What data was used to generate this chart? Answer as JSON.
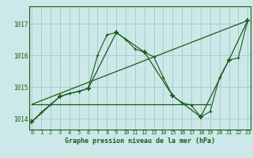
{
  "title": "Graphe pression niveau de la mer (hPa)",
  "bg_color": "#cce8e8",
  "grid_color": "#aacccc",
  "line_color": "#1a5c1a",
  "x_ticks": [
    0,
    1,
    2,
    3,
    4,
    5,
    6,
    7,
    8,
    9,
    10,
    11,
    12,
    13,
    14,
    15,
    16,
    17,
    18,
    19,
    20,
    21,
    22,
    23
  ],
  "y_ticks": [
    1014,
    1015,
    1016,
    1017
  ],
  "ylim": [
    1013.65,
    1017.55
  ],
  "xlim": [
    -0.3,
    23.3
  ],
  "series_hourly": {
    "x": [
      0,
      1,
      2,
      3,
      4,
      5,
      6,
      7,
      8,
      9,
      10,
      11,
      12,
      13,
      14,
      15,
      16,
      17,
      18,
      19,
      20,
      21,
      22,
      23
    ],
    "y": [
      1013.9,
      1014.2,
      1014.45,
      1014.7,
      1014.8,
      1014.85,
      1014.95,
      1016.0,
      1016.65,
      1016.72,
      1016.5,
      1016.2,
      1016.1,
      1015.95,
      1015.3,
      1014.72,
      1014.5,
      1014.42,
      1014.05,
      1014.22,
      1015.3,
      1015.85,
      1015.92,
      1017.1
    ]
  },
  "series_3h": {
    "x": [
      0,
      3,
      6,
      9,
      12,
      15,
      18,
      21,
      23
    ],
    "y": [
      1013.9,
      1014.7,
      1014.95,
      1016.72,
      1016.1,
      1014.72,
      1014.05,
      1015.85,
      1017.1
    ]
  },
  "series_linear": {
    "x": [
      0,
      23
    ],
    "y": [
      1014.45,
      1017.1
    ]
  },
  "series_flat": {
    "x": [
      0,
      19
    ],
    "y": [
      1014.45,
      1014.45
    ]
  }
}
